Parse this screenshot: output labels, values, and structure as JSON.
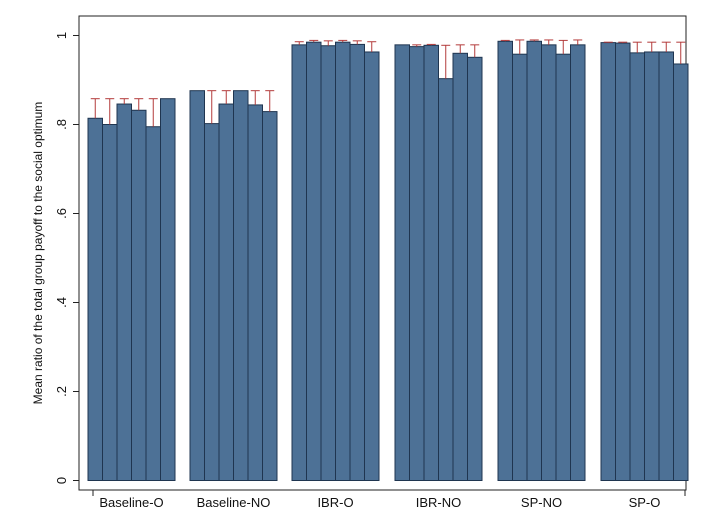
{
  "chart_data": {
    "type": "bar",
    "title": "",
    "xlabel": "",
    "ylabel": "Mean ratio of the total group payoff to the social optimum",
    "ylim": [
      0,
      1
    ],
    "yticks": [
      {
        "value": 0,
        "label": "0"
      },
      {
        "value": 0.2,
        "label": ".2"
      },
      {
        "value": 0.4,
        "label": ".4"
      },
      {
        "value": 0.6,
        "label": ".6"
      },
      {
        "value": 0.8,
        "label": ".8"
      },
      {
        "value": 1,
        "label": "1"
      }
    ],
    "grid": false,
    "legend": "none",
    "colors": {
      "bar_fill": "#4d7196",
      "bar_edge": "#1f3550",
      "error_bar": "#b33b3b",
      "plot_background": "#ffffff",
      "outer_background": "#ffffff"
    },
    "groups": [
      {
        "label": "Baseline-O",
        "values": [
          0.814,
          0.8,
          0.846,
          0.832,
          0.795,
          0.858
        ],
        "upper": [
          0.858,
          0.858,
          0.858,
          0.858,
          0.858,
          0.858
        ]
      },
      {
        "label": "Baseline-NO",
        "values": [
          0.876,
          0.802,
          0.846,
          0.876,
          0.844,
          0.829
        ],
        "upper": [
          0.876,
          0.876,
          0.876,
          0.876,
          0.876,
          0.876
        ]
      },
      {
        "label": "IBR-O",
        "values": [
          0.979,
          0.985,
          0.977,
          0.985,
          0.98,
          0.963
        ],
        "upper": [
          0.986,
          0.989,
          0.988,
          0.989,
          0.988,
          0.986
        ]
      },
      {
        "label": "IBR-NO",
        "values": [
          0.979,
          0.975,
          0.978,
          0.903,
          0.96,
          0.951
        ],
        "upper": [
          0.979,
          0.979,
          0.98,
          0.978,
          0.979,
          0.979
        ]
      },
      {
        "label": "SP-NO",
        "values": [
          0.987,
          0.958,
          0.987,
          0.979,
          0.958,
          0.979
        ],
        "upper": [
          0.989,
          0.99,
          0.99,
          0.99,
          0.989,
          0.99
        ]
      },
      {
        "label": "SP-O",
        "values": [
          0.984,
          0.983,
          0.961,
          0.963,
          0.963,
          0.936
        ],
        "upper": [
          0.985,
          0.985,
          0.985,
          0.985,
          0.985,
          0.985
        ]
      }
    ]
  }
}
